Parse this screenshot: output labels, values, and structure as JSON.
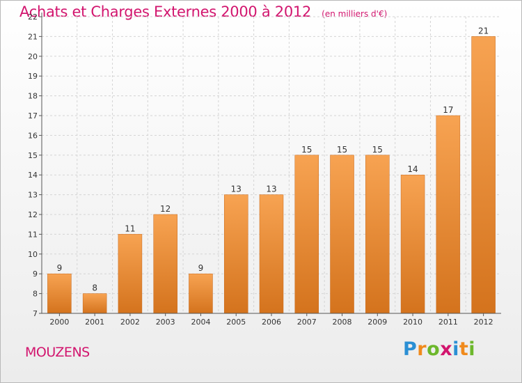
{
  "header": {
    "title": "Achats et Charges Externes 2000 à 2012",
    "subtitle": "(en milliers d'€)"
  },
  "footer": {
    "commune": "MOUZENS",
    "brand": "Proxiti",
    "brand_letters": [
      {
        "ch": "P",
        "color": "#2a8fd4"
      },
      {
        "ch": "r",
        "color": "#f08a1c"
      },
      {
        "ch": "o",
        "color": "#6cb72b"
      },
      {
        "ch": "x",
        "color": "#d2156e"
      },
      {
        "ch": "i",
        "color": "#2a8fd4"
      },
      {
        "ch": "t",
        "color": "#f08a1c"
      },
      {
        "ch": "i",
        "color": "#6cb72b"
      }
    ]
  },
  "colors": {
    "bar_top": "#f7a352",
    "bar_bottom": "#d4731d",
    "bar_edge": "#c8681a",
    "grid": "#d4d4d4",
    "axis": "#555555",
    "text": "#333333",
    "accent": "#d2156e"
  },
  "chart_data": {
    "type": "bar",
    "categories": [
      "2000",
      "2001",
      "2002",
      "2003",
      "2004",
      "2005",
      "2006",
      "2007",
      "2008",
      "2009",
      "2010",
      "2011",
      "2012"
    ],
    "values": [
      9,
      8,
      11,
      12,
      9,
      13,
      13,
      15,
      15,
      15,
      14,
      17,
      21
    ],
    "data_labels": [
      "9",
      "8",
      "11",
      "12",
      "9",
      "13",
      "13",
      "15",
      "15",
      "15",
      "14",
      "17",
      "21"
    ],
    "ylim": [
      7,
      22
    ],
    "yticks": [
      7,
      8,
      9,
      10,
      11,
      12,
      13,
      14,
      15,
      16,
      17,
      18,
      19,
      20,
      21,
      22
    ],
    "grid": true,
    "legend": "none"
  }
}
